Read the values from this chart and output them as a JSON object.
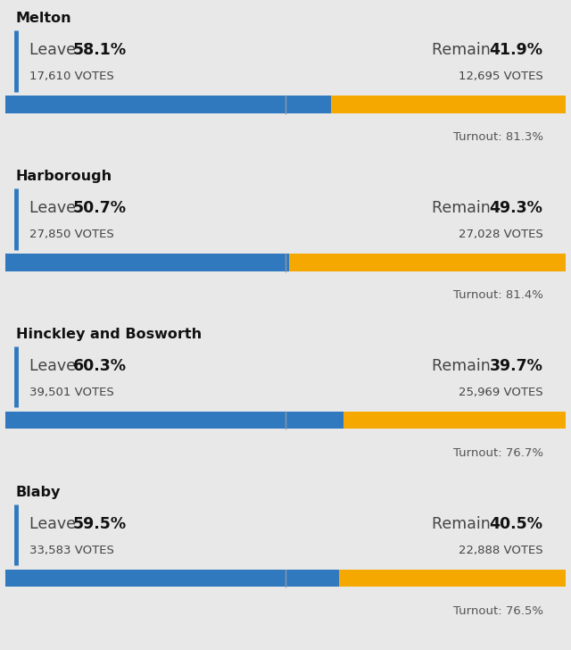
{
  "districts": [
    {
      "name": "Melton",
      "leave_pct": 58.1,
      "remain_pct": 41.9,
      "leave_votes": "17,610",
      "remain_votes": "12,695",
      "turnout": "81.3%"
    },
    {
      "name": "Harborough",
      "leave_pct": 50.7,
      "remain_pct": 49.3,
      "leave_votes": "27,850",
      "remain_votes": "27,028",
      "turnout": "81.4%"
    },
    {
      "name": "Hinckley and Bosworth",
      "leave_pct": 60.3,
      "remain_pct": 39.7,
      "leave_votes": "39,501",
      "remain_votes": "25,969",
      "turnout": "76.7%"
    },
    {
      "name": "Blaby",
      "leave_pct": 59.5,
      "remain_pct": 40.5,
      "leave_votes": "33,583",
      "remain_votes": "22,888",
      "turnout": "76.5%"
    }
  ],
  "leave_color": "#3079be",
  "remain_color": "#f5a800",
  "divider_color": "#8899aa",
  "outer_bg": "#e8e8e8",
  "card_bg": "#f5f5f5",
  "left_border_color": "#3079be",
  "title_fontsize": 11.5,
  "pct_fontsize": 12.5,
  "votes_fontsize": 9.5,
  "turnout_fontsize": 9.5,
  "label_color": "#444444",
  "votes_color": "#444444",
  "turnout_color": "#555555",
  "title_color": "#111111"
}
